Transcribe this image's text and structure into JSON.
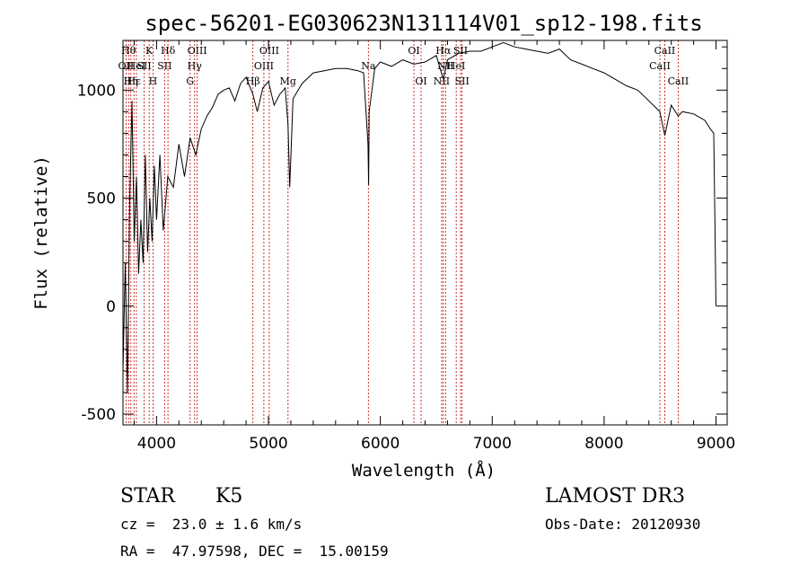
{
  "chart_data": {
    "type": "line",
    "title": "spec-56201-EG030623N131114V01_sp12-198.fits",
    "xlabel": "Wavelength (Å)",
    "ylabel": "Flux (relative)",
    "xlim": [
      3700,
      9100
    ],
    "ylim": [
      -550,
      1230
    ],
    "xticks": [
      4000,
      5000,
      6000,
      7000,
      8000,
      9000
    ],
    "yticks": [
      -500,
      0,
      500,
      1000
    ],
    "series": [
      {
        "name": "flux",
        "x": [
          3700,
          3720,
          3740,
          3760,
          3780,
          3800,
          3820,
          3840,
          3860,
          3880,
          3900,
          3920,
          3940,
          3960,
          3980,
          4000,
          4030,
          4060,
          4100,
          4150,
          4200,
          4250,
          4300,
          4350,
          4400,
          4450,
          4500,
          4550,
          4600,
          4650,
          4700,
          4750,
          4800,
          4861,
          4900,
          4950,
          5000,
          5050,
          5100,
          5150,
          5175,
          5190,
          5220,
          5300,
          5400,
          5500,
          5600,
          5700,
          5800,
          5850,
          5890,
          5895,
          5900,
          5950,
          6000,
          6100,
          6200,
          6300,
          6400,
          6500,
          6563,
          6600,
          6700,
          6800,
          6900,
          7000,
          7100,
          7200,
          7300,
          7400,
          7500,
          7600,
          7700,
          7800,
          7900,
          8000,
          8100,
          8200,
          8300,
          8400,
          8498,
          8542,
          8600,
          8662,
          8700,
          8800,
          8900,
          8950,
          8980,
          8990,
          9000
        ],
        "y": [
          -300,
          200,
          -400,
          500,
          950,
          300,
          600,
          150,
          400,
          200,
          700,
          250,
          500,
          300,
          650,
          400,
          700,
          350,
          600,
          550,
          750,
          600,
          780,
          700,
          820,
          880,
          920,
          980,
          1000,
          1010,
          950,
          1030,
          1060,
          980,
          900,
          1010,
          1040,
          930,
          980,
          1010,
          840,
          550,
          960,
          1030,
          1080,
          1090,
          1100,
          1100,
          1090,
          1080,
          750,
          560,
          900,
          1100,
          1130,
          1110,
          1140,
          1120,
          1130,
          1160,
          1050,
          1140,
          1170,
          1180,
          1180,
          1200,
          1220,
          1200,
          1190,
          1180,
          1170,
          1190,
          1140,
          1120,
          1100,
          1080,
          1050,
          1020,
          1000,
          950,
          900,
          790,
          930,
          880,
          900,
          890,
          860,
          820,
          800,
          400,
          0
        ]
      }
    ],
    "lines": [
      {
        "wl": 3727,
        "label": "OII",
        "row": 2
      },
      {
        "wl": 3750,
        "label": "Hθ",
        "row": 1
      },
      {
        "wl": 3770,
        "label": "Hη",
        "row": 3
      },
      {
        "wl": 3798,
        "label": "Hε",
        "row": 3
      },
      {
        "wl": 3820,
        "label": "HeI",
        "row": 2
      },
      {
        "wl": 3889,
        "label": "SII",
        "row": 2
      },
      {
        "wl": 3934,
        "label": "K",
        "row": 1
      },
      {
        "wl": 3968,
        "label": "H",
        "row": 3
      },
      {
        "wl": 4102,
        "label": "Hδ",
        "row": 1
      },
      {
        "wl": 4072,
        "label": "SII",
        "row": 2
      },
      {
        "wl": 4300,
        "label": "G",
        "row": 3
      },
      {
        "wl": 4340,
        "label": "Hγ",
        "row": 2
      },
      {
        "wl": 4363,
        "label": "OIII",
        "row": 1
      },
      {
        "wl": 4861,
        "label": "Hβ",
        "row": 3
      },
      {
        "wl": 4959,
        "label": "OIII",
        "row": 2
      },
      {
        "wl": 5007,
        "label": "OIII",
        "row": 1
      },
      {
        "wl": 5175,
        "label": "Mg",
        "row": 3
      },
      {
        "wl": 5893,
        "label": "Na",
        "row": 2
      },
      {
        "wl": 6300,
        "label": "OI",
        "row": 1
      },
      {
        "wl": 6364,
        "label": "OI",
        "row": 3
      },
      {
        "wl": 6548,
        "label": "NII",
        "row": 3
      },
      {
        "wl": 6563,
        "label": "Hα",
        "row": 1
      },
      {
        "wl": 6583,
        "label": "NII",
        "row": 2
      },
      {
        "wl": 6717,
        "label": "SII",
        "row": 1
      },
      {
        "wl": 6731,
        "label": "SII",
        "row": 3
      },
      {
        "wl": 6678,
        "label": "HeI",
        "row": 2
      },
      {
        "wl": 8498,
        "label": "CaII",
        "row": 2
      },
      {
        "wl": 8542,
        "label": "CaII",
        "row": 1
      },
      {
        "wl": 8662,
        "label": "CaII",
        "row": 3
      }
    ]
  },
  "info": {
    "object_class": "STAR",
    "subclass": "K5",
    "survey": "LAMOST DR3",
    "redshift": "cz =  23.0 ± 1.6 km/s",
    "obs_date": "Obs-Date: 20120930",
    "coords": "RA =  47.97598, DEC =  15.00159"
  }
}
